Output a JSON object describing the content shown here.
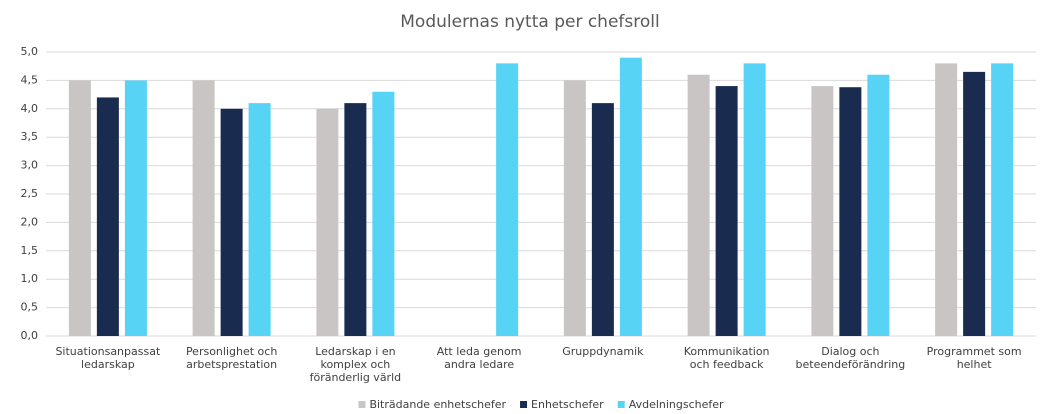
{
  "chart_data": {
    "type": "bar",
    "title": "Modulernas nytta per chefsroll",
    "categories": [
      "Situationsanpassat ledarskap",
      "Personlighet och arbetsprestation",
      "Ledarskap i en komplex och föränderlig värld",
      "Att leda genom andra ledare",
      "Gruppdynamik",
      "Kommunikation och feedback",
      "Dialog och beteendeförändring",
      "Programmet som helhet"
    ],
    "series": [
      {
        "name": "Biträdande enhetschefer",
        "color": "#c9c5c5",
        "values": [
          4.5,
          4.5,
          4.0,
          null,
          4.5,
          4.6,
          4.4,
          4.8
        ]
      },
      {
        "name": "Enhetschefer",
        "color": "#1a2b50",
        "values": [
          4.2,
          4.0,
          4.1,
          null,
          4.1,
          4.4,
          4.38,
          4.65
        ]
      },
      {
        "name": "Avdelningschefer",
        "color": "#56d3f5",
        "values": [
          4.5,
          4.1,
          4.3,
          4.8,
          4.9,
          4.8,
          4.6,
          4.8
        ]
      }
    ],
    "ylim": [
      0,
      5
    ],
    "yticks": [
      {
        "value": 0,
        "label": "0,0"
      },
      {
        "value": 0.5,
        "label": "0,5"
      },
      {
        "value": 1,
        "label": "1,0"
      },
      {
        "value": 1.5,
        "label": "1,5"
      },
      {
        "value": 2,
        "label": "2,0"
      },
      {
        "value": 2.5,
        "label": "2,5"
      },
      {
        "value": 3,
        "label": "3,0"
      },
      {
        "value": 3.5,
        "label": "3,5"
      },
      {
        "value": 4,
        "label": "4,0"
      },
      {
        "value": 4.5,
        "label": "4,5"
      },
      {
        "value": 5,
        "label": "5,0"
      }
    ],
    "grid": true,
    "legend": "bottom"
  }
}
